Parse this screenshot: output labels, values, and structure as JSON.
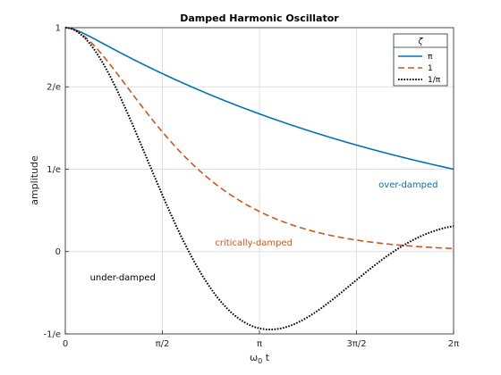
{
  "chart_data": {
    "type": "line",
    "title": "Damped Harmonic Oscillator",
    "xlabel_main": "ω",
    "xlabel_sub": "0",
    "xlabel_rest": " t",
    "ylabel": "amplitude",
    "xlim": [
      0,
      6.2832
    ],
    "ylim": [
      -0.3679,
      1.0
    ],
    "x_ticks": [
      {
        "value": 0,
        "label": "0"
      },
      {
        "value": 1.5708,
        "label": "π/2"
      },
      {
        "value": 3.1416,
        "label": "π"
      },
      {
        "value": 4.7124,
        "label": "3π/2"
      },
      {
        "value": 6.2832,
        "label": "2π"
      }
    ],
    "y_ticks": [
      {
        "value": -0.3679,
        "label": "-1/e"
      },
      {
        "value": 0,
        "label": "0"
      },
      {
        "value": 0.3679,
        "label": "1/e"
      },
      {
        "value": 0.7358,
        "label": "2/e"
      },
      {
        "value": 1.0,
        "label": "1"
      }
    ],
    "grid": true,
    "legend": {
      "title": "ζ",
      "placement": "top-right",
      "entries": [
        "π",
        "1",
        "1/π"
      ]
    },
    "series": [
      {
        "name": "π",
        "zeta": 3.14159,
        "style": "solid",
        "color": "#0072BD"
      },
      {
        "name": "1",
        "zeta": 1.0,
        "style": "dashed",
        "color": "#D95319"
      },
      {
        "name": "1/π",
        "zeta": 0.31831,
        "style": "dotted",
        "color": "#000000"
      }
    ],
    "annotations": [
      {
        "text": "over-damped",
        "x": 5.55,
        "y": 0.3,
        "color": "#0072BD"
      },
      {
        "text": "critically-damped",
        "x": 3.05,
        "y": 0.04,
        "color": "#D95319"
      },
      {
        "text": "under-damped",
        "x": 0.93,
        "y": -0.115,
        "color": "#000000"
      }
    ]
  }
}
